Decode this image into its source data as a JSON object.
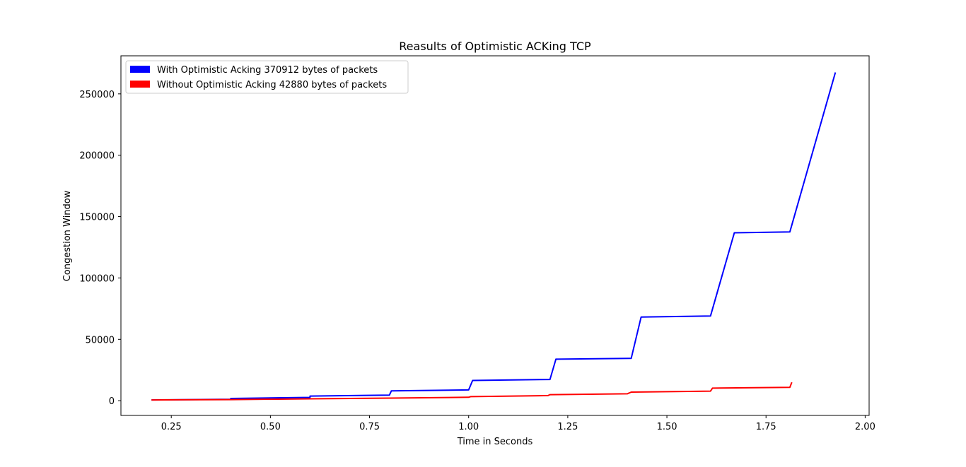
{
  "chart_data": {
    "type": "line",
    "title": "Reasults of Optimistic ACKing TCP",
    "xlabel": "Time in Seconds",
    "ylabel": "Congestion Window",
    "xlim": [
      0.123,
      2.01
    ],
    "ylim": [
      -12000,
      281000
    ],
    "xticks": [
      0.25,
      0.5,
      0.75,
      1.0,
      1.25,
      1.5,
      1.75,
      2.0
    ],
    "xtick_labels": [
      "0.25",
      "0.50",
      "0.75",
      "1.00",
      "1.25",
      "1.50",
      "1.75",
      "2.00"
    ],
    "yticks": [
      0,
      50000,
      100000,
      150000,
      200000,
      250000
    ],
    "ytick_labels": [
      "0",
      "50000",
      "100000",
      "150000",
      "200000",
      "250000"
    ],
    "grid": false,
    "legend_position": "top-left",
    "series": [
      {
        "name": "With Optimistic Acking 370912 bytes of packets",
        "color": "#0000ff",
        "x": [
          0.2,
          0.4,
          0.4,
          0.6,
          0.6,
          0.8,
          0.805,
          1.0,
          1.01,
          1.205,
          1.22,
          1.41,
          1.435,
          1.61,
          1.67,
          1.81,
          1.925
        ],
        "y": [
          600,
          1200,
          1800,
          2700,
          3800,
          4500,
          8000,
          8800,
          16500,
          17300,
          33800,
          34500,
          68200,
          69000,
          136800,
          137500,
          267500
        ]
      },
      {
        "name": "Without Optimistic Acking 42880 bytes of packets",
        "color": "#ff0000",
        "x": [
          0.2,
          0.4,
          0.6,
          0.8,
          1.0,
          1.005,
          1.2,
          1.205,
          1.4,
          1.41,
          1.61,
          1.615,
          1.81,
          1.815
        ],
        "y": [
          600,
          900,
          1500,
          2100,
          2800,
          3300,
          4200,
          4900,
          5600,
          7000,
          7800,
          10200,
          10900,
          15000
        ]
      }
    ]
  }
}
